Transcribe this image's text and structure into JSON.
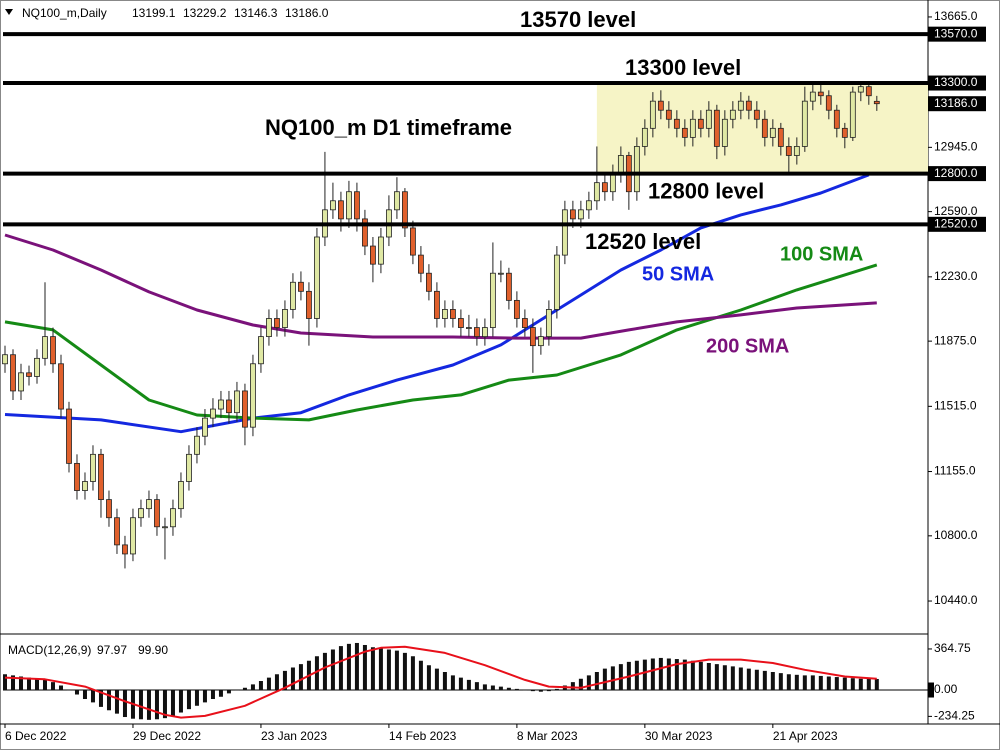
{
  "chart_data": [
    {
      "type": "candlestick",
      "title": "NQ100_m D1 timeframe",
      "symbol": "NQ100_m,Daily",
      "ohlc_labels": [
        "13199.1",
        "13229.2",
        "13146.3",
        "13186.0"
      ],
      "up_color": "#dfe8a4",
      "down_color": "#e0602c",
      "wick_color": "#222222",
      "xlim": [
        -0.25,
        115.4
      ],
      "xticks": [
        {
          "value": 0,
          "label": "6 Dec 2022"
        },
        {
          "value": 16,
          "label": "29 Dec 2022"
        },
        {
          "value": 32,
          "label": "23 Jan 2023"
        },
        {
          "value": 48,
          "label": "14 Feb 2023"
        },
        {
          "value": 64,
          "label": "8 Mar 2023"
        },
        {
          "value": 80,
          "label": "30 Mar 2023"
        },
        {
          "value": 96,
          "label": "21 Apr 2023"
        }
      ],
      "ylim": [
        10269,
        13742
      ],
      "yticks": [
        {
          "value": 13665,
          "label": "13665.0"
        },
        {
          "value": 12945,
          "label": "12945.0"
        },
        {
          "value": 12590,
          "label": "12590.0"
        },
        {
          "value": 12230,
          "label": "12230.0"
        },
        {
          "value": 11875,
          "label": "11875.0"
        },
        {
          "value": 11515,
          "label": "11515.0"
        },
        {
          "value": 11155,
          "label": "11155.0"
        },
        {
          "value": 10800,
          "label": "10800.0"
        },
        {
          "value": 10440,
          "label": "10440.0"
        }
      ],
      "levels": [
        {
          "value": 13570,
          "label": "13570.0",
          "text": "13570 level"
        },
        {
          "value": 13300,
          "label": "13300.0",
          "text": "13300 level"
        },
        {
          "value": 12800,
          "label": "12800.0",
          "text": "12800 level"
        },
        {
          "value": 12520,
          "label": "12520.0",
          "text": "12520 level"
        }
      ],
      "last_price": {
        "value": 13186,
        "label": "13186.0"
      },
      "range_box": {
        "x": 74,
        "top": 13300,
        "bottom": 12800,
        "color": "#f6f4c6"
      },
      "moving_averages": [
        {
          "name": "50 SMA",
          "color": "#1428e0",
          "x": [
            0,
            12,
            22,
            31,
            37,
            43,
            49,
            56,
            62,
            67,
            72,
            77,
            82,
            87,
            92,
            97,
            102,
            108
          ],
          "values": [
            11470,
            11440,
            11375,
            11450,
            11480,
            11578,
            11660,
            11743,
            11854,
            11992,
            12130,
            12268,
            12378,
            12500,
            12572,
            12627,
            12693,
            12793
          ]
        },
        {
          "name": "100 SMA",
          "color": "#158a15",
          "x": [
            0,
            6,
            12,
            18,
            24,
            31,
            38,
            44,
            51,
            57,
            63,
            69,
            77,
            84,
            92,
            99,
            109
          ],
          "values": [
            11981,
            11937,
            11743,
            11550,
            11467,
            11450,
            11440,
            11495,
            11550,
            11578,
            11660,
            11688,
            11799,
            11937,
            12047,
            12158,
            12296
          ]
        },
        {
          "name": "200 SMA",
          "color": "#7a127a",
          "x": [
            0,
            6,
            12,
            18,
            24,
            31,
            37,
            46,
            56,
            64,
            72,
            78,
            84,
            92,
            99,
            109
          ],
          "values": [
            12461,
            12378,
            12268,
            12147,
            12047,
            11964,
            11920,
            11898,
            11898,
            11892,
            11892,
            11937,
            11981,
            12020,
            12058,
            12086
          ]
        }
      ],
      "candles": [
        [
          11750,
          11850,
          11700,
          11800
        ],
        [
          11800,
          11830,
          11550,
          11600
        ],
        [
          11600,
          11750,
          11550,
          11700
        ],
        [
          11700,
          11740,
          11630,
          11680
        ],
        [
          11680,
          11830,
          11640,
          11780
        ],
        [
          11780,
          12200,
          11740,
          11900
        ],
        [
          11900,
          11950,
          11700,
          11750
        ],
        [
          11750,
          11800,
          11450,
          11500
        ],
        [
          11500,
          11540,
          11150,
          11200
        ],
        [
          11200,
          11250,
          11000,
          11050
        ],
        [
          11050,
          11150,
          11000,
          11100
        ],
        [
          11100,
          11300,
          11050,
          11250
        ],
        [
          11250,
          11280,
          10900,
          11000
        ],
        [
          11000,
          11050,
          10850,
          10900
        ],
        [
          10900,
          10950,
          10700,
          10750
        ],
        [
          10750,
          10800,
          10620,
          10700
        ],
        [
          10700,
          10950,
          10660,
          10900
        ],
        [
          10900,
          11000,
          10850,
          10950
        ],
        [
          10950,
          11050,
          10900,
          11000
        ],
        [
          11000,
          11030,
          10800,
          10850
        ],
        [
          10850,
          10900,
          10670,
          10850
        ],
        [
          10850,
          11000,
          10800,
          10950
        ],
        [
          10950,
          11150,
          10900,
          11100
        ],
        [
          11100,
          11300,
          11050,
          11250
        ],
        [
          11250,
          11400,
          11200,
          11350
        ],
        [
          11350,
          11500,
          11300,
          11450
        ],
        [
          11450,
          11560,
          11400,
          11500
        ],
        [
          11500,
          11600,
          11450,
          11550
        ],
        [
          11550,
          11600,
          11420,
          11480
        ],
        [
          11480,
          11650,
          11430,
          11600
        ],
        [
          11600,
          11640,
          11300,
          11400
        ],
        [
          11400,
          11800,
          11350,
          11750
        ],
        [
          11750,
          11950,
          11700,
          11900
        ],
        [
          11900,
          12050,
          11850,
          12000
        ],
        [
          12000,
          12050,
          11900,
          11950
        ],
        [
          11950,
          12100,
          11900,
          12050
        ],
        [
          12050,
          12250,
          12000,
          12200
        ],
        [
          12200,
          12260,
          12100,
          12150
        ],
        [
          12150,
          12200,
          11850,
          12000
        ],
        [
          12000,
          12500,
          11950,
          12450
        ],
        [
          12450,
          12920,
          12400,
          12600
        ],
        [
          12600,
          12750,
          12550,
          12650
        ],
        [
          12650,
          12700,
          12480,
          12550
        ],
        [
          12550,
          12760,
          12500,
          12700
        ],
        [
          12700,
          12750,
          12480,
          12550
        ],
        [
          12550,
          12600,
          12350,
          12400
        ],
        [
          12400,
          12450,
          12200,
          12300
        ],
        [
          12300,
          12500,
          12250,
          12450
        ],
        [
          12450,
          12680,
          12400,
          12600
        ],
        [
          12600,
          12780,
          12550,
          12700
        ],
        [
          12700,
          12720,
          12450,
          12500
        ],
        [
          12500,
          12540,
          12300,
          12350
        ],
        [
          12350,
          12400,
          12200,
          12250
        ],
        [
          12250,
          12300,
          12100,
          12150
        ],
        [
          12150,
          12200,
          11950,
          12000
        ],
        [
          12000,
          12100,
          11950,
          12050
        ],
        [
          12050,
          12100,
          11950,
          12000
        ],
        [
          12000,
          12050,
          11900,
          11950
        ],
        [
          11950,
          12020,
          11900,
          11950
        ],
        [
          11950,
          12000,
          11850,
          11900
        ],
        [
          11900,
          12000,
          11850,
          11950
        ],
        [
          11950,
          12420,
          11900,
          12250
        ],
        [
          12250,
          12320,
          12200,
          12250
        ],
        [
          12250,
          12280,
          12050,
          12100
        ],
        [
          12100,
          12150,
          11950,
          12000
        ],
        [
          12000,
          12050,
          11900,
          11950
        ],
        [
          11950,
          12000,
          11700,
          11850
        ],
        [
          11850,
          11950,
          11800,
          11900
        ],
        [
          11900,
          12100,
          11850,
          12050
        ],
        [
          12050,
          12400,
          12000,
          12350
        ],
        [
          12350,
          12650,
          12300,
          12600
        ],
        [
          12600,
          12650,
          12500,
          12550
        ],
        [
          12550,
          12650,
          12500,
          12600
        ],
        [
          12600,
          12700,
          12550,
          12650
        ],
        [
          12650,
          12950,
          12600,
          12750
        ],
        [
          12750,
          12800,
          12650,
          12700
        ],
        [
          12700,
          12850,
          12650,
          12800
        ],
        [
          12800,
          12950,
          12750,
          12900
        ],
        [
          12900,
          12920,
          12600,
          12700
        ],
        [
          12700,
          13000,
          12650,
          12950
        ],
        [
          12950,
          13100,
          12900,
          13050
        ],
        [
          13050,
          13250,
          13000,
          13200
        ],
        [
          13200,
          13260,
          13100,
          13150
        ],
        [
          13150,
          13200,
          13050,
          13100
        ],
        [
          13100,
          13150,
          13000,
          13050
        ],
        [
          13050,
          13100,
          12950,
          13000
        ],
        [
          13000,
          13150,
          12950,
          13100
        ],
        [
          13100,
          13150,
          13000,
          13050
        ],
        [
          13050,
          13200,
          13000,
          13150
        ],
        [
          13150,
          13180,
          12880,
          12950
        ],
        [
          12950,
          13150,
          12900,
          13100
        ],
        [
          13100,
          13200,
          13050,
          13150
        ],
        [
          13150,
          13250,
          13100,
          13200
        ],
        [
          13200,
          13230,
          13100,
          13150
        ],
        [
          13150,
          13200,
          13050,
          13100
        ],
        [
          13100,
          13150,
          12950,
          13000
        ],
        [
          13000,
          13100,
          12950,
          13050
        ],
        [
          13050,
          13080,
          12900,
          12950
        ],
        [
          12950,
          13000,
          12800,
          12900
        ],
        [
          12900,
          13000,
          12850,
          12950
        ],
        [
          12950,
          13280,
          12920,
          13200
        ],
        [
          13200,
          13300,
          13150,
          13250
        ],
        [
          13250,
          13290,
          13180,
          13230
        ],
        [
          13230,
          13260,
          13100,
          13150
        ],
        [
          13150,
          13180,
          13000,
          13050
        ],
        [
          13050,
          13080,
          12940,
          13000
        ],
        [
          13000,
          13280,
          12980,
          13250
        ],
        [
          13250,
          13310,
          13200,
          13280
        ],
        [
          13280,
          13300,
          13180,
          13230
        ],
        [
          13199.1,
          13229.2,
          13146.3,
          13186
        ]
      ]
    },
    {
      "type": "macd",
      "label": "MACD(12,26,9)",
      "value_labels": [
        "97.97",
        "99.90"
      ],
      "xlim": [
        -0.25,
        115.4
      ],
      "ylim": [
        -302,
        471
      ],
      "yticks": [
        364.75,
        {
          "value": 0,
          "label": "0.00"
        },
        -234.25
      ],
      "histogram": {
        "color": "#111111",
        "values": [
          140,
          130,
          120,
          110,
          100,
          90,
          70,
          40,
          0,
          -40,
          -80,
          -110,
          -150,
          -180,
          -210,
          -240,
          -255,
          -260,
          -265,
          -260,
          -250,
          -230,
          -200,
          -170,
          -140,
          -110,
          -80,
          -60,
          -30,
          0,
          20,
          50,
          80,
          110,
          140,
          170,
          200,
          230,
          260,
          300,
          330,
          360,
          390,
          410,
          418,
          400,
          380,
          370,
          360,
          350,
          330,
          300,
          260,
          220,
          190,
          160,
          130,
          110,
          90,
          70,
          50,
          40,
          30,
          20,
          10,
          0,
          -10,
          -15,
          -10,
          10,
          40,
          70,
          100,
          130,
          160,
          190,
          210,
          230,
          250,
          260,
          270,
          280,
          285,
          280,
          275,
          270,
          260,
          250,
          240,
          230,
          220,
          210,
          200,
          190,
          180,
          170,
          160,
          150,
          140,
          135,
          130,
          130,
          125,
          120,
          115,
          110,
          105,
          100,
          100,
          97.97
        ]
      },
      "signal": {
        "color": "#e8101a",
        "x": [
          0,
          5,
          10,
          15,
          20,
          22,
          25,
          30,
          35,
          40,
          45,
          47,
          50,
          55,
          60,
          65,
          68,
          72,
          78,
          84,
          88,
          92,
          96,
          100,
          105,
          109
        ],
        "values": [
          110,
          95,
          30,
          -100,
          -220,
          -245,
          -230,
          -140,
          20,
          200,
          340,
          375,
          385,
          330,
          220,
          90,
          30,
          20,
          120,
          230,
          270,
          270,
          240,
          180,
          120,
          99.9
        ]
      }
    }
  ]
}
